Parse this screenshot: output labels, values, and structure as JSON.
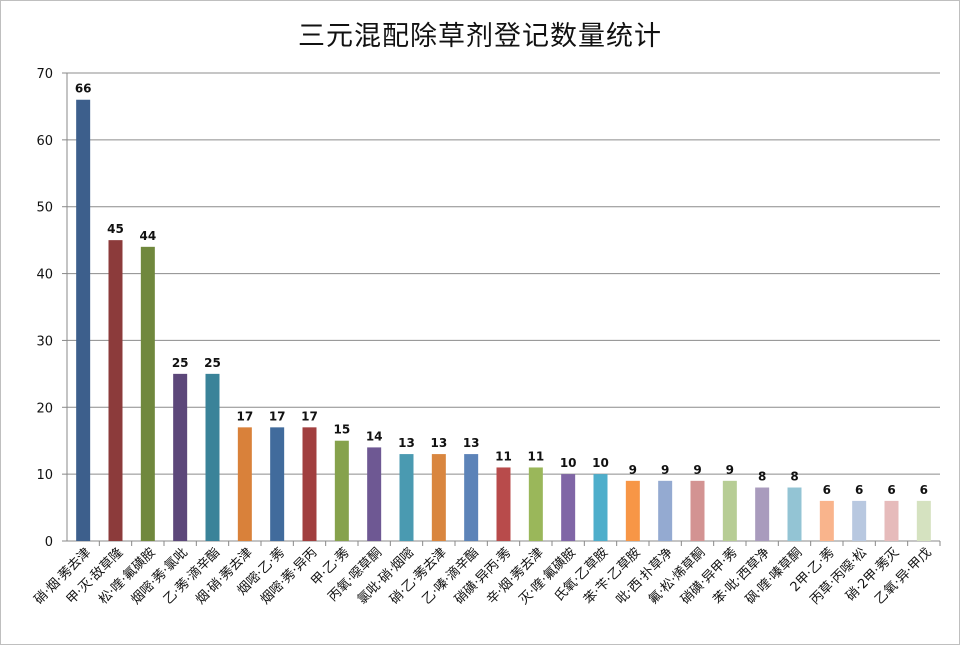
{
  "chart_data": {
    "type": "bar",
    "title": "三元混配除草剂登记数量统计",
    "xlabel": "",
    "ylabel": "",
    "ylim": [
      0,
      70
    ],
    "yticks": [
      0,
      10,
      20,
      30,
      40,
      50,
      60,
      70
    ],
    "grid": true,
    "legend": "none",
    "categories": [
      "硝·烟·莠去津",
      "甲·灭·敌草隆",
      "松·喹·氟磺胺",
      "烟嘧·莠·氯吡",
      "乙·莠·滴辛酯",
      "烟·硝·莠去津",
      "烟嘧·乙·莠",
      "烟嘧·莠·异丙",
      "甲·乙·莠",
      "丙氧·噁草酮",
      "氯吡·硝·烟嘧",
      "硝·乙·莠去津",
      "乙·嗪·滴辛酯",
      "硝磺·异丙·莠",
      "辛·烟·莠去津",
      "灭·喹·氟磺胺",
      "氏氧·乙草胺",
      "苯·苄·乙草胺",
      "吡·西·扑草净",
      "氟·松·烯草酮",
      "硝磺·异甲·莠",
      "苯·吡·西草净",
      "砜·喹·嗪草酮",
      "2甲·乙·莠",
      "丙草·丙噁·松",
      "硝·2甲·莠灭",
      "乙氧·异·甲戊"
    ],
    "values": [
      66,
      45,
      44,
      25,
      25,
      17,
      17,
      17,
      15,
      14,
      13,
      13,
      13,
      11,
      11,
      10,
      10,
      9,
      9,
      9,
      9,
      8,
      8,
      6,
      6,
      6,
      6
    ],
    "colors": [
      "#3d5f8c",
      "#8c3b3b",
      "#70883d",
      "#5c477a",
      "#3a8399",
      "#d9813a",
      "#416b9c",
      "#a13f3f",
      "#86a24c",
      "#6e5893",
      "#4a9ab1",
      "#d9863f",
      "#5c83b8",
      "#b84b4b",
      "#9ab75a",
      "#8066a6",
      "#4eaecb",
      "#f79646",
      "#94aad1",
      "#d39392",
      "#b7cd95",
      "#a99bbd",
      "#93c4d4",
      "#f9b48c",
      "#b8c8e0",
      "#e6bbbb",
      "#d5e2c0"
    ]
  }
}
